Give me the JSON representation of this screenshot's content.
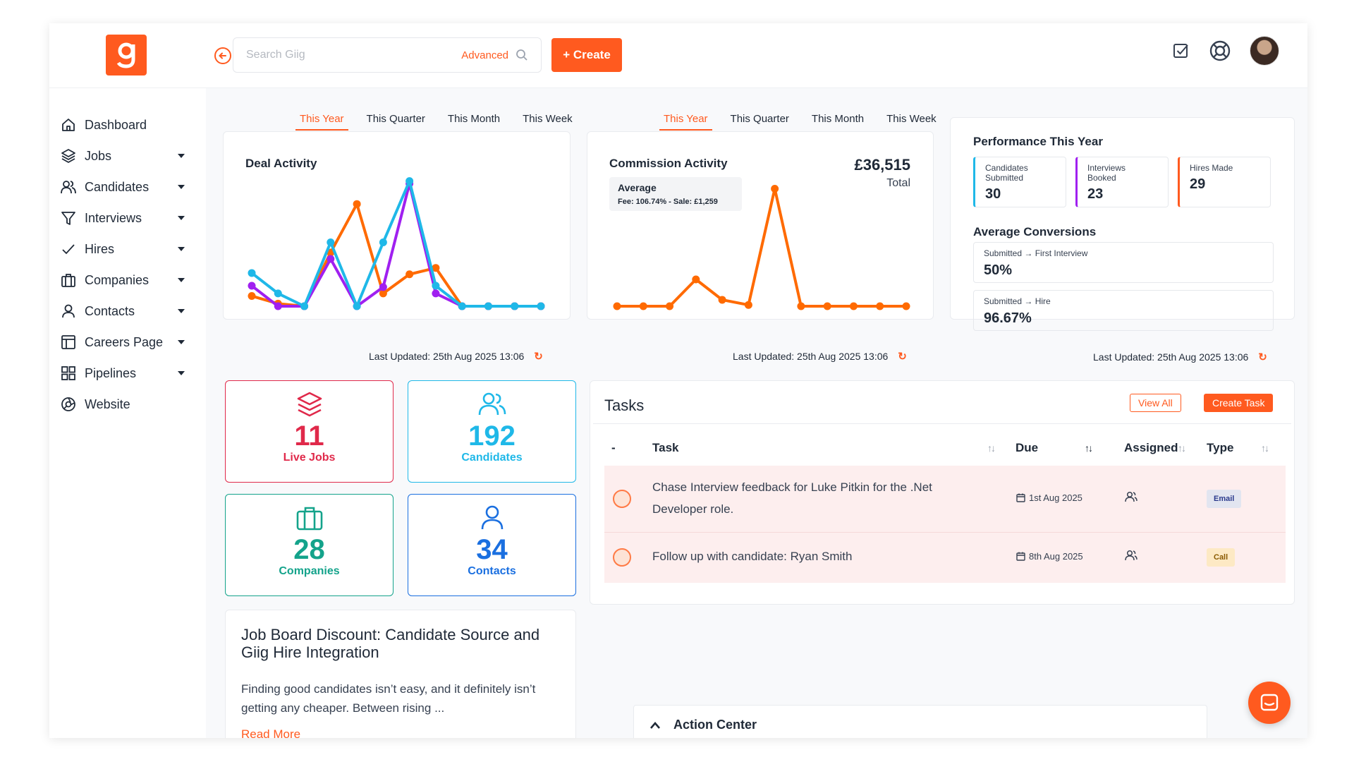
{
  "app": {
    "logo_letter": "g",
    "brand_color": "#ff5a1f"
  },
  "search": {
    "placeholder": "Search Giig",
    "advanced_label": "Advanced"
  },
  "create_button": {
    "label": "+ Create"
  },
  "sidebar": {
    "items": [
      {
        "label": "Dashboard",
        "icon": "home-icon",
        "has_caret": false
      },
      {
        "label": "Jobs",
        "icon": "layers-icon",
        "has_caret": true
      },
      {
        "label": "Candidates",
        "icon": "users-icon",
        "has_caret": true
      },
      {
        "label": "Interviews",
        "icon": "funnel-icon",
        "has_caret": true
      },
      {
        "label": "Hires",
        "icon": "check-icon",
        "has_caret": true
      },
      {
        "label": "Companies",
        "icon": "building-icon",
        "has_caret": true
      },
      {
        "label": "Contacts",
        "icon": "user-icon",
        "has_caret": true
      },
      {
        "label": "Careers Page",
        "icon": "layout-icon",
        "has_caret": true
      },
      {
        "label": "Pipelines",
        "icon": "grid-icon",
        "has_caret": true
      },
      {
        "label": "Website",
        "icon": "globe-icon",
        "has_caret": false
      }
    ]
  },
  "deal_activity": {
    "tabs": [
      "This Year",
      "This Quarter",
      "This Month",
      "This Week"
    ],
    "active_tab": "This Year",
    "title": "Deal Activity",
    "last_updated": "Last Updated: 25th Aug 2025 13:06"
  },
  "commission_activity": {
    "tabs": [
      "This Year",
      "This Quarter",
      "This Month",
      "This Week"
    ],
    "active_tab": "This Year",
    "title": "Commission Activity",
    "total_value": "£36,515",
    "total_label": "Total",
    "average_label": "Average",
    "average_detail": "Fee: 106.74% - Sale: £1,259",
    "last_updated": "Last Updated: 25th Aug 2025 13:06"
  },
  "performance": {
    "title": "Performance This Year",
    "stats": [
      {
        "label": "Candidates Submitted",
        "value": "30",
        "color": "#1fb8e8"
      },
      {
        "label": "Interviews Booked",
        "value": "23",
        "color": "#a020f0"
      },
      {
        "label": "Hires Made",
        "value": "29",
        "color": "#ff5a1f"
      }
    ],
    "conversions_title": "Average Conversions",
    "conversions": [
      {
        "from": "Submitted",
        "to": "First Interview",
        "value": "50%"
      },
      {
        "from": "Submitted",
        "to": "Hire",
        "value": "96.67%"
      }
    ],
    "last_updated": "Last Updated: 25th Aug 2025 13:06"
  },
  "tiles": [
    {
      "value": "11",
      "label": "Live Jobs",
      "color": "#e0294a",
      "icon": "layers-icon"
    },
    {
      "value": "192",
      "label": "Candidates",
      "color": "#1fb8e8",
      "icon": "users-icon"
    },
    {
      "value": "28",
      "label": "Companies",
      "color": "#14a38b",
      "icon": "briefcase-icon"
    },
    {
      "value": "34",
      "label": "Contacts",
      "color": "#1a6fe0",
      "icon": "user-icon"
    }
  ],
  "blog": {
    "title": "Job Board Discount: Candidate Source and Giig Hire Integration",
    "excerpt": "Finding good candidates isn’t easy, and it definitely isn’t getting any cheaper. Between rising ...",
    "link": "Read More"
  },
  "tasks": {
    "title": "Tasks",
    "view_all": "View All",
    "create_task": "Create Task",
    "columns": {
      "select": "-",
      "task": "Task",
      "due": "Due",
      "assigned": "Assigned",
      "type": "Type"
    },
    "rows": [
      {
        "task": "Chase Interview feedback for Luke Pitkin for the .Net Developer role.",
        "due": "1st Aug 2025",
        "type": "Email"
      },
      {
        "task": "Follow up with candidate: Ryan Smith",
        "due": "8th Aug 2025",
        "type": "Call"
      }
    ]
  },
  "action_center": {
    "label": "Action Center"
  },
  "chart_data": [
    {
      "type": "line",
      "title": "Deal Activity",
      "x": [
        1,
        2,
        3,
        4,
        5,
        6,
        7,
        8,
        9,
        10,
        11,
        12
      ],
      "ylim": [
        0,
        10
      ],
      "series": [
        {
          "name": "Orange",
          "color": "#ff6a00",
          "values": [
            0.8,
            0.2,
            0,
            4.2,
            8,
            1,
            2.5,
            3,
            0,
            0,
            0,
            0
          ]
        },
        {
          "name": "Purple",
          "color": "#a020f0",
          "values": [
            1.6,
            0,
            0,
            3.7,
            0,
            1.5,
            9.6,
            1,
            0,
            0,
            0,
            0
          ]
        },
        {
          "name": "Blue",
          "color": "#1fb8e8",
          "values": [
            2.6,
            1,
            0,
            5,
            0,
            5,
            9.8,
            1.6,
            0,
            0,
            0,
            0
          ]
        }
      ]
    },
    {
      "type": "line",
      "title": "Commission Activity",
      "x": [
        1,
        2,
        3,
        4,
        5,
        6,
        7,
        8,
        9,
        10,
        11,
        12
      ],
      "ylim": [
        0,
        10
      ],
      "series": [
        {
          "name": "Commission",
          "color": "#ff6a00",
          "values": [
            0,
            0,
            0,
            2.1,
            0.5,
            0.1,
            9.2,
            0,
            0,
            0,
            0,
            0
          ]
        }
      ]
    }
  ]
}
